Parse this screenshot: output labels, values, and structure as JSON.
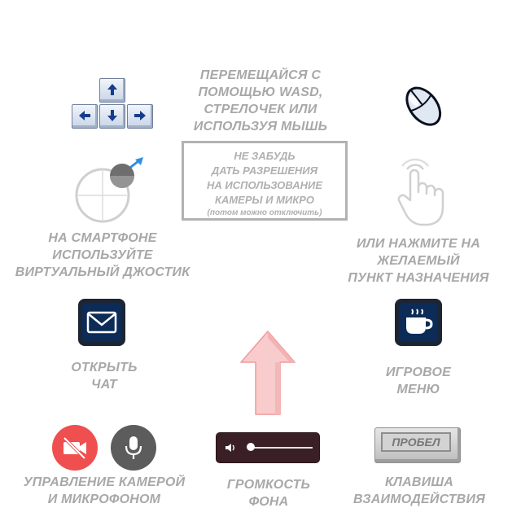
{
  "move": {
    "lines": [
      "ПЕРЕМЕЩАЙСЯ С",
      "ПОМОЩЬЮ WASD,",
      "СТРЕЛОЧЕК ИЛИ",
      "ИСПОЛЬЗУЯ МЫШЬ"
    ],
    "keys_icon": "arrow-keys-icon",
    "mouse_icon": "mouse-icon"
  },
  "consent": {
    "lines": [
      "НЕ ЗАБУДЬ",
      "ДАТЬ РАЗРЕШЕНИЯ",
      "НА ИСПОЛЬЗОВАНИЕ",
      "КАМЕРЫ И МИКРО"
    ],
    "note": "(потом можно отключить)"
  },
  "joystick": {
    "icon": "virtual-joystick-icon",
    "lines": [
      "НА СМАРТФОНЕ",
      "ИСПОЛЬЗУЙТЕ",
      "ВИРТУАЛЬНЫЙ ДЖОСТИК"
    ]
  },
  "tap": {
    "icon": "tap-hand-icon",
    "lines": [
      "ИЛИ НАЖМИТЕ НА",
      "ЖЕЛАЕМЫЙ",
      "ПУНКТ НАЗНАЧЕНИЯ"
    ]
  },
  "chat": {
    "icon": "envelope-icon",
    "lines": [
      "ОТКРЫТЬ",
      "ЧАТ"
    ]
  },
  "menu": {
    "icon": "coffee-cup-icon",
    "lines": [
      "ИГРОВОЕ",
      "МЕНЮ"
    ]
  },
  "media": {
    "camera_icon": "camera-off-icon",
    "mic_icon": "microphone-icon",
    "lines": [
      "УПРАВЛЕНИЕ КАМЕРОЙ",
      "И МИКРОФОНОМ"
    ],
    "colors": {
      "camera_bg": "#ef4f4f",
      "mic_bg": "#5c5c5c"
    }
  },
  "volume": {
    "icon": "speaker-icon",
    "level": 0.05,
    "lines": [
      "ГРОМКОСТЬ",
      "ФОНА"
    ]
  },
  "interact": {
    "key_label": "ПРОБЕЛ",
    "lines": [
      "КЛАВИША",
      "ВЗАИМОДЕЙСТВИЯ"
    ]
  },
  "center_arrow": {
    "icon": "up-arrow-icon",
    "color": "#f8c9c9"
  }
}
